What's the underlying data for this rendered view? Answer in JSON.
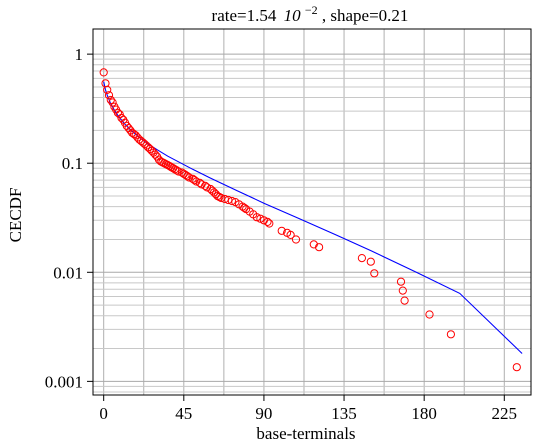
{
  "chart_data": {
    "type": "scatter",
    "title": {
      "prefix": "rate=1.54",
      "mantissa_exp_base": "10",
      "exponent": "−2",
      "suffix": ", shape=0.21"
    },
    "xlabel": "base-terminals",
    "ylabel": "CECDF",
    "xlim": [
      -6,
      240
    ],
    "ylim": [
      0.00075,
      1.7
    ],
    "y_scale": "log",
    "grid": true,
    "x_ticks": [
      0,
      45,
      90,
      135,
      180,
      225
    ],
    "x_tick_labels": [
      "0",
      "45",
      "90",
      "135",
      "180",
      "225"
    ],
    "x_minor_grid": [
      22.5,
      67.5,
      112.5,
      157.5,
      202.5
    ],
    "y_ticks": [
      1,
      0.1,
      0.01,
      0.001
    ],
    "y_tick_labels": [
      "1",
      "0.1",
      "0.01",
      "0.001"
    ],
    "series": [
      {
        "kind": "points",
        "marker": "circle-open",
        "color": "#ff0000",
        "x": [
          0,
          1,
          2,
          3,
          4,
          5,
          6,
          7,
          8,
          9,
          10,
          11,
          12,
          13,
          14,
          15,
          16,
          17,
          18,
          19,
          20,
          21,
          22,
          23,
          24,
          25,
          26,
          27,
          28,
          29,
          30,
          31,
          32,
          33,
          34,
          35,
          36,
          37,
          38,
          39,
          40,
          41,
          42,
          44,
          45,
          46,
          47,
          48,
          50,
          51,
          52,
          54,
          55,
          57,
          58,
          60,
          61,
          62,
          63,
          64,
          65,
          66,
          68,
          70,
          72,
          74,
          76,
          78,
          79,
          80,
          82,
          84,
          86,
          88,
          90,
          92,
          93,
          100,
          103,
          105,
          108,
          118,
          121,
          145,
          150,
          152,
          167,
          168,
          169,
          183,
          195,
          232
        ],
        "y": [
          0.68,
          0.54,
          0.47,
          0.42,
          0.38,
          0.36,
          0.33,
          0.31,
          0.29,
          0.28,
          0.26,
          0.25,
          0.235,
          0.22,
          0.21,
          0.2,
          0.19,
          0.185,
          0.18,
          0.172,
          0.165,
          0.16,
          0.155,
          0.15,
          0.145,
          0.14,
          0.135,
          0.13,
          0.125,
          0.12,
          0.115,
          0.108,
          0.104,
          0.102,
          0.1,
          0.098,
          0.096,
          0.094,
          0.092,
          0.09,
          0.088,
          0.086,
          0.084,
          0.082,
          0.08,
          0.078,
          0.076,
          0.074,
          0.072,
          0.07,
          0.068,
          0.066,
          0.064,
          0.062,
          0.06,
          0.058,
          0.056,
          0.054,
          0.052,
          0.05,
          0.049,
          0.048,
          0.047,
          0.046,
          0.045,
          0.044,
          0.042,
          0.04,
          0.039,
          0.038,
          0.036,
          0.034,
          0.032,
          0.031,
          0.03,
          0.029,
          0.028,
          0.024,
          0.023,
          0.022,
          0.02,
          0.018,
          0.017,
          0.0135,
          0.0125,
          0.0098,
          0.0082,
          0.0068,
          0.0055,
          0.0041,
          0.0027,
          0.00135
        ]
      },
      {
        "kind": "fit-line",
        "color": "#0000ff",
        "x": [
          0,
          1,
          2,
          4,
          6,
          8,
          10,
          12,
          15,
          18,
          21,
          25,
          30,
          36,
          42,
          50,
          60,
          75,
          90,
          110,
          130,
          150,
          175,
          200,
          235
        ],
        "y": [
          0.56,
          0.47,
          0.42,
          0.35,
          0.306,
          0.274,
          0.249,
          0.228,
          0.203,
          0.184,
          0.168,
          0.15,
          0.133,
          0.116,
          0.103,
          0.088,
          0.073,
          0.056,
          0.043,
          0.031,
          0.0222,
          0.0158,
          0.0101,
          0.0064,
          0.0018
        ]
      }
    ]
  }
}
